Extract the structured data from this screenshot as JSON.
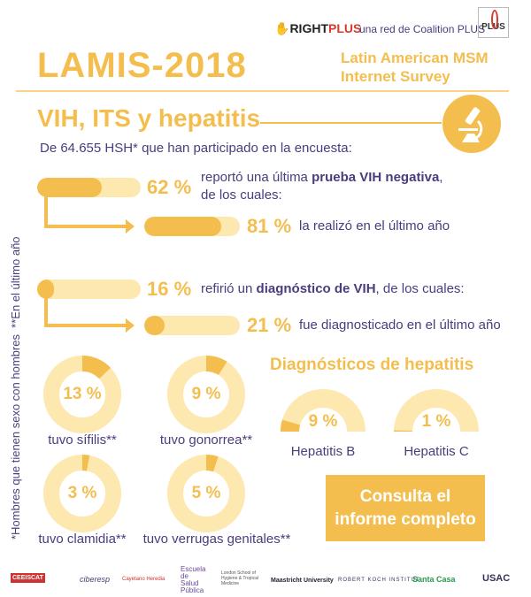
{
  "header": {
    "brand_right": "RIGHT",
    "brand_plus": "PLUS",
    "network_text": "una red de Coalition PLUS",
    "plus_logo": "PLUS",
    "title": "LAMIS-2018",
    "subtitle_line1": "Latin American MSM",
    "subtitle_line2": "Internet Survey"
  },
  "section": {
    "title": "VIH, ITS y hepatitis",
    "icon": "microscope-icon",
    "intro": "De 64.655 HSH* que han participado en la encuesta:"
  },
  "bars": [
    {
      "percent": 62,
      "label": "62 %",
      "text_pre": "reportó una última ",
      "text_bold": "prueba VIH negativa",
      "text_post": ",",
      "text_line2": "de los cuales:"
    },
    {
      "percent": 81,
      "label": "81 %",
      "text": "la realizó en el último año"
    },
    {
      "percent": 16,
      "label": "16 %",
      "text_pre": "refirió un ",
      "text_bold": "diagnóstico de VIH",
      "text_post": ", de los cuales:"
    },
    {
      "percent": 21,
      "label": "21 %",
      "text": "fue diagnosticado en el último año"
    }
  ],
  "footnote": "*Hombres que tienen sexo con hombres  **En el último año",
  "donuts": [
    {
      "percent": 13,
      "label": "13 %",
      "caption": "tuvo sífilis**"
    },
    {
      "percent": 9,
      "label": "9 %",
      "caption": "tuvo gonorrea**"
    },
    {
      "percent": 3,
      "label": "3 %",
      "caption": "tuvo clamidia**"
    },
    {
      "percent": 5,
      "label": "5 %",
      "caption": "tuvo verrugas genitales**"
    }
  ],
  "hepatitis": {
    "title": "Diagnósticos de hepatitis",
    "items": [
      {
        "percent": 9,
        "label": "9 %",
        "caption": "Hepatitis B"
      },
      {
        "percent": 1,
        "label": "1 %",
        "caption": "Hepatitis C"
      }
    ]
  },
  "cta": {
    "line1": "Consulta el",
    "line2": "informe completo"
  },
  "colors": {
    "gold": "#f4be4f",
    "light": "#fde8b0",
    "purple": "#4b3c7e",
    "red": "#d63a2f"
  },
  "partners": [
    "CEEISCAT",
    "ciberesp",
    "Cayetano Heredia",
    "Escuela de Salud Pública",
    "London School of Hygiene & Tropical Medicine",
    "Maastricht University",
    "ROBERT KOCH INSTITUT",
    "Santa Casa",
    "USAC"
  ]
}
